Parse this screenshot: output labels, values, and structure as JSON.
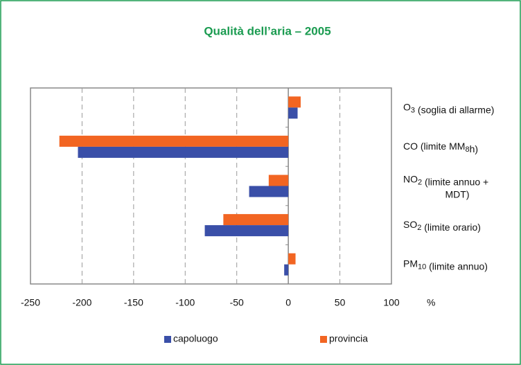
{
  "chart_data": {
    "type": "hbar",
    "title": "Qualità dell’aria – 2005",
    "categories": [
      "O3 (soglia di allarme)",
      "CO (limite MM8h)",
      "NO2 (limite annuo + MDT)",
      "SO2 (limite orario)",
      "PM10 (limite annuo)"
    ],
    "series": [
      {
        "name": "capoluogo",
        "color": "#3a4fa8",
        "values": [
          9,
          -204,
          -38,
          -81,
          -4
        ]
      },
      {
        "name": "provincia",
        "color": "#f26522",
        "values": [
          12,
          -222,
          -19,
          -63,
          7
        ]
      }
    ],
    "xlim": [
      -250,
      100
    ],
    "xticks": [
      -250,
      -200,
      -150,
      -100,
      -50,
      0,
      50,
      100
    ],
    "xlabel": "%",
    "grid": true,
    "legend": "bottom"
  }
}
